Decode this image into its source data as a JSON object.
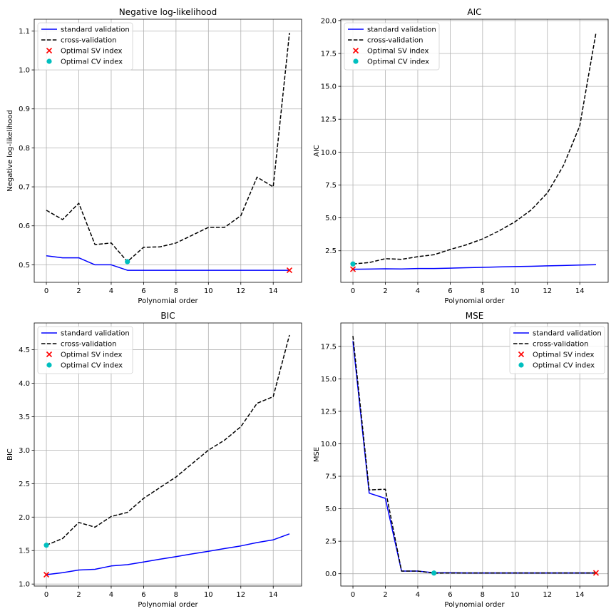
{
  "chart_data": [
    {
      "type": "line",
      "title": "Negative log-likelihood",
      "xlabel": "Polynomial order",
      "ylabel": "Negative log-likelihood",
      "xlim": [
        -0.75,
        15.75
      ],
      "ylim": [
        0.455,
        1.13
      ],
      "xticks": [
        0,
        2,
        4,
        6,
        8,
        10,
        12,
        14
      ],
      "yticks": [
        0.5,
        0.6,
        0.7,
        0.8,
        0.9,
        1.0,
        1.1
      ],
      "ytick_labels": [
        "0.5",
        "0.6",
        "0.7",
        "0.8",
        "0.9",
        "1.0",
        "1.1"
      ],
      "grid": true,
      "legend_position": "top-left",
      "x": [
        0,
        1,
        2,
        3,
        4,
        5,
        6,
        7,
        8,
        9,
        10,
        11,
        12,
        13,
        14,
        15
      ],
      "series": [
        {
          "name": "standard validation",
          "style": "solid",
          "color": "#0000ff",
          "values": [
            0.523,
            0.518,
            0.518,
            0.5,
            0.5,
            0.486,
            0.486,
            0.486,
            0.486,
            0.486,
            0.486,
            0.486,
            0.486,
            0.486,
            0.486,
            0.486
          ]
        },
        {
          "name": "cross-validation",
          "style": "dashed",
          "color": "#000000",
          "values": [
            0.64,
            0.616,
            0.658,
            0.552,
            0.556,
            0.508,
            0.545,
            0.546,
            0.556,
            0.576,
            0.596,
            0.596,
            0.626,
            0.725,
            0.7,
            1.095
          ]
        }
      ],
      "markers": [
        {
          "name": "Optimal SV index",
          "marker": "x",
          "color": "#ff0000",
          "x": 15,
          "y": 0.486
        },
        {
          "name": "Optimal CV index",
          "marker": "o",
          "color": "#00bfbf",
          "x": 5,
          "y": 0.508
        }
      ]
    },
    {
      "type": "line",
      "title": "AIC",
      "xlabel": "Polynomial order",
      "ylabel": "AIC",
      "xlim": [
        -0.75,
        15.75
      ],
      "ylim": [
        0.1,
        20.1
      ],
      "xticks": [
        0,
        2,
        4,
        6,
        8,
        10,
        12,
        14
      ],
      "yticks": [
        2.5,
        5.0,
        7.5,
        10.0,
        12.5,
        15.0,
        17.5,
        20.0
      ],
      "ytick_labels": [
        "2.5",
        "5.0",
        "7.5",
        "10.0",
        "12.5",
        "15.0",
        "17.5",
        "20.0"
      ],
      "grid": true,
      "legend_position": "top-left",
      "x": [
        0,
        1,
        2,
        3,
        4,
        5,
        6,
        7,
        8,
        9,
        10,
        11,
        12,
        13,
        14,
        15
      ],
      "series": [
        {
          "name": "standard validation",
          "style": "solid",
          "color": "#0000ff",
          "values": [
            1.1,
            1.11,
            1.13,
            1.12,
            1.15,
            1.15,
            1.18,
            1.21,
            1.24,
            1.27,
            1.3,
            1.32,
            1.35,
            1.38,
            1.41,
            1.44
          ]
        },
        {
          "name": "cross-validation",
          "style": "dashed",
          "color": "#000000",
          "values": [
            1.5,
            1.6,
            1.9,
            1.85,
            2.05,
            2.2,
            2.6,
            2.95,
            3.4,
            4.0,
            4.7,
            5.6,
            6.9,
            9.0,
            12.0,
            19.1
          ]
        }
      ],
      "markers": [
        {
          "name": "Optimal SV index",
          "marker": "x",
          "color": "#ff0000",
          "x": 0,
          "y": 1.1
        },
        {
          "name": "Optimal CV index",
          "marker": "o",
          "color": "#00bfbf",
          "x": 0,
          "y": 1.5
        }
      ]
    },
    {
      "type": "line",
      "title": "BIC",
      "xlabel": "Polynomial order",
      "ylabel": "BIC",
      "xlim": [
        -0.75,
        15.75
      ],
      "ylim": [
        0.97,
        4.9
      ],
      "xticks": [
        0,
        2,
        4,
        6,
        8,
        10,
        12,
        14
      ],
      "yticks": [
        1.0,
        1.5,
        2.0,
        2.5,
        3.0,
        3.5,
        4.0,
        4.5
      ],
      "ytick_labels": [
        "1.0",
        "1.5",
        "2.0",
        "2.5",
        "3.0",
        "3.5",
        "4.0",
        "4.5"
      ],
      "grid": true,
      "legend_position": "top-left",
      "x": [
        0,
        1,
        2,
        3,
        4,
        5,
        6,
        7,
        8,
        9,
        10,
        11,
        12,
        13,
        14,
        15
      ],
      "series": [
        {
          "name": "standard validation",
          "style": "solid",
          "color": "#0000ff",
          "values": [
            1.14,
            1.17,
            1.21,
            1.22,
            1.27,
            1.29,
            1.33,
            1.37,
            1.41,
            1.45,
            1.49,
            1.53,
            1.57,
            1.62,
            1.66,
            1.75
          ]
        },
        {
          "name": "cross-validation",
          "style": "dashed",
          "color": "#000000",
          "values": [
            1.58,
            1.68,
            1.92,
            1.85,
            2.01,
            2.07,
            2.28,
            2.44,
            2.6,
            2.8,
            3.0,
            3.15,
            3.35,
            3.7,
            3.8,
            4.72
          ]
        }
      ],
      "markers": [
        {
          "name": "Optimal SV index",
          "marker": "x",
          "color": "#ff0000",
          "x": 0,
          "y": 1.14
        },
        {
          "name": "Optimal CV index",
          "marker": "o",
          "color": "#00bfbf",
          "x": 0,
          "y": 1.58
        }
      ]
    },
    {
      "type": "line",
      "title": "MSE",
      "xlabel": "Polynomial order",
      "ylabel": "MSE",
      "xlim": [
        -0.75,
        15.75
      ],
      "ylim": [
        -0.95,
        19.3
      ],
      "xticks": [
        0,
        2,
        4,
        6,
        8,
        10,
        12,
        14
      ],
      "yticks": [
        0.0,
        2.5,
        5.0,
        7.5,
        10.0,
        12.5,
        15.0,
        17.5
      ],
      "ytick_labels": [
        "0.0",
        "2.5",
        "5.0",
        "7.5",
        "10.0",
        "12.5",
        "15.0",
        "17.5"
      ],
      "grid": true,
      "legend_position": "top-right",
      "x": [
        0,
        1,
        2,
        3,
        4,
        5,
        6,
        7,
        8,
        9,
        10,
        11,
        12,
        13,
        14,
        15
      ],
      "series": [
        {
          "name": "standard validation",
          "style": "solid",
          "color": "#0000ff",
          "values": [
            17.9,
            6.2,
            5.8,
            0.2,
            0.2,
            0.07,
            0.07,
            0.06,
            0.06,
            0.06,
            0.06,
            0.06,
            0.06,
            0.06,
            0.06,
            0.06
          ]
        },
        {
          "name": "cross-validation",
          "style": "dashed",
          "color": "#000000",
          "values": [
            18.3,
            6.45,
            6.5,
            0.2,
            0.2,
            0.05,
            0.06,
            0.06,
            0.06,
            0.06,
            0.06,
            0.06,
            0.06,
            0.06,
            0.06,
            0.06
          ]
        }
      ],
      "markers": [
        {
          "name": "Optimal SV index",
          "marker": "x",
          "color": "#ff0000",
          "x": 15,
          "y": 0.06
        },
        {
          "name": "Optimal CV index",
          "marker": "o",
          "color": "#00bfbf",
          "x": 5,
          "y": 0.05
        }
      ]
    }
  ]
}
